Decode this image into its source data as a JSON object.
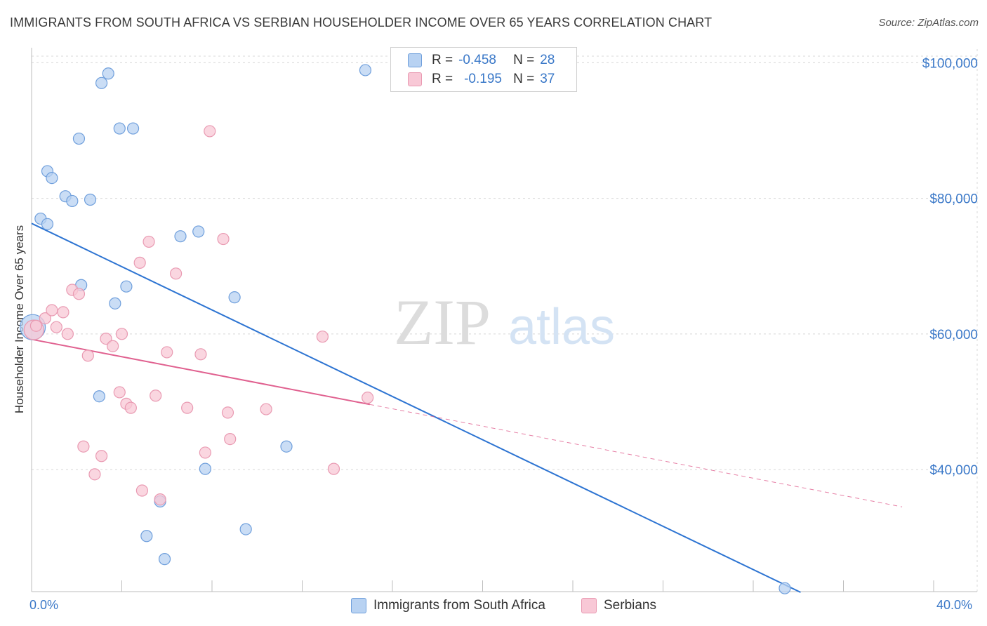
{
  "title": "IMMIGRANTS FROM SOUTH AFRICA VS SERBIAN HOUSEHOLDER INCOME OVER 65 YEARS CORRELATION CHART",
  "source": "Source: ZipAtlas.com",
  "watermark": {
    "zip": "ZIP",
    "atlas": "atlas"
  },
  "colors": {
    "blue_fill": "#b8d2f2",
    "blue_stroke": "#6f9fdc",
    "blue_line": "#2d74d2",
    "pink_fill": "#f8c8d6",
    "pink_stroke": "#e99ab2",
    "pink_line": "#e0608f",
    "axis_text": "#3a78c8",
    "grid": "#d8d8d8"
  },
  "stats": [
    {
      "swatch": "blue",
      "r_label": "R =",
      "r_value": "-0.458",
      "n_label": "N =",
      "n_value": "28"
    },
    {
      "swatch": "pink",
      "r_label": "R =",
      "r_value": "-0.195",
      "n_label": "N =",
      "n_value": "37"
    }
  ],
  "legend": [
    {
      "swatch": "blue",
      "label": "Immigrants from South Africa"
    },
    {
      "swatch": "pink",
      "label": "Serbians"
    }
  ],
  "chart_data": {
    "type": "scatter",
    "title": "IMMIGRANTS FROM SOUTH AFRICA VS SERBIAN HOUSEHOLDER INCOME OVER 65 YEARS CORRELATION CHART",
    "xlabel": "",
    "ylabel": "Householder Income Over 65 years",
    "xlim": [
      0,
      40
    ],
    "ylim": [
      22000,
      102000
    ],
    "x_tick_labels": [
      "0.0%",
      "40.0%"
    ],
    "y_ticks": [
      40000,
      60000,
      80000,
      100000
    ],
    "y_tick_labels": [
      "$40,000",
      "$60,000",
      "$80,000",
      "$100,000"
    ],
    "grid": true,
    "legend_position": "bottom",
    "series": [
      {
        "name": "Immigrants from South Africa",
        "color": "blue",
        "points": [
          [
            0.05,
            61000
          ],
          [
            0.4,
            77000
          ],
          [
            0.7,
            76200
          ],
          [
            0.7,
            84000
          ],
          [
            0.9,
            83000
          ],
          [
            1.5,
            80300
          ],
          [
            1.8,
            79600
          ],
          [
            2.1,
            88800
          ],
          [
            2.2,
            67200
          ],
          [
            2.6,
            79800
          ],
          [
            3.1,
            97000
          ],
          [
            3.4,
            98400
          ],
          [
            3.7,
            64500
          ],
          [
            3.0,
            50800
          ],
          [
            3.9,
            90300
          ],
          [
            4.2,
            67000
          ],
          [
            4.5,
            90300
          ],
          [
            5.1,
            30200
          ],
          [
            5.7,
            35300
          ],
          [
            5.9,
            26800
          ],
          [
            6.6,
            74400
          ],
          [
            7.4,
            75100
          ],
          [
            7.7,
            40100
          ],
          [
            9.0,
            65400
          ],
          [
            9.5,
            31200
          ],
          [
            11.3,
            43400
          ],
          [
            14.8,
            98900
          ],
          [
            33.4,
            22500
          ]
        ],
        "trend": {
          "x": [
            0,
            34.1
          ],
          "y": [
            76300,
            21900
          ],
          "style": "solid"
        }
      },
      {
        "name": "Serbians",
        "color": "pink",
        "points": [
          [
            0.1,
            60600
          ],
          [
            0.2,
            61200
          ],
          [
            0.6,
            62300
          ],
          [
            0.9,
            63500
          ],
          [
            1.1,
            61000
          ],
          [
            1.4,
            63200
          ],
          [
            1.6,
            60000
          ],
          [
            1.8,
            66500
          ],
          [
            2.1,
            65900
          ],
          [
            2.3,
            43400
          ],
          [
            2.5,
            56800
          ],
          [
            2.8,
            39300
          ],
          [
            3.1,
            42000
          ],
          [
            3.3,
            59300
          ],
          [
            3.6,
            58200
          ],
          [
            3.9,
            51400
          ],
          [
            4.0,
            60000
          ],
          [
            4.2,
            49700
          ],
          [
            4.4,
            49100
          ],
          [
            4.8,
            70500
          ],
          [
            4.9,
            36900
          ],
          [
            5.2,
            73600
          ],
          [
            5.5,
            50900
          ],
          [
            5.7,
            35600
          ],
          [
            6.0,
            57300
          ],
          [
            6.4,
            68900
          ],
          [
            6.9,
            49100
          ],
          [
            7.5,
            57000
          ],
          [
            7.7,
            42500
          ],
          [
            7.9,
            89900
          ],
          [
            8.5,
            74000
          ],
          [
            8.7,
            48400
          ],
          [
            8.8,
            44500
          ],
          [
            10.4,
            48900
          ],
          [
            12.9,
            59600
          ],
          [
            13.4,
            40100
          ],
          [
            14.9,
            50600
          ]
        ],
        "trend": {
          "x": [
            0,
            15.0
          ],
          "y": [
            59200,
            49600
          ],
          "style": "solid"
        },
        "trend_extension": {
          "x": [
            15.0,
            38.6
          ],
          "y": [
            49600,
            34500
          ],
          "style": "dashed"
        }
      }
    ]
  }
}
